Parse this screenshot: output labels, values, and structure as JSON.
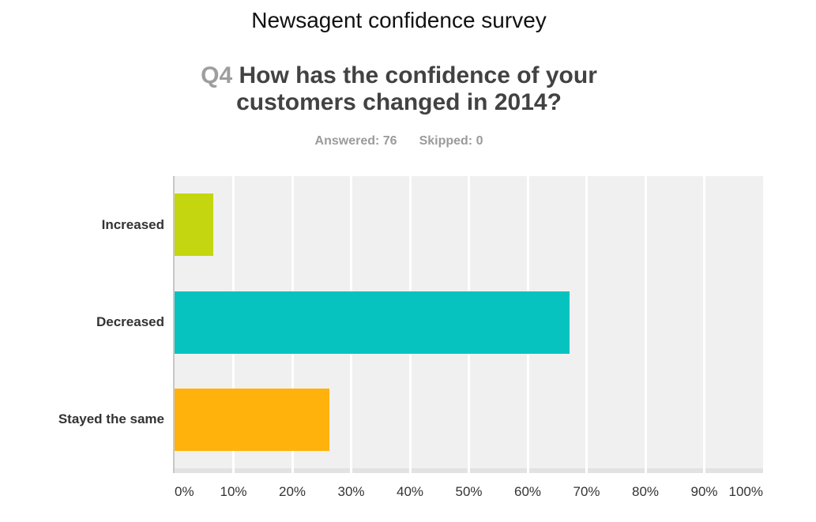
{
  "header": {
    "survey_title": "Newsagent confidence survey",
    "question_number": "Q4",
    "question_text": "How has the confidence of your customers changed in 2014?",
    "answered": "Answered: 76",
    "skipped": "Skipped: 0"
  },
  "chart_data": {
    "type": "bar",
    "orientation": "horizontal",
    "title": "Q4 How has the confidence of your customers changed in 2014?",
    "categories": [
      "Increased",
      "Decreased",
      "Stayed the same"
    ],
    "values": [
      6.58,
      67.11,
      26.32
    ],
    "unit": "%",
    "colors": [
      "#c3d60f",
      "#06c3bf",
      "#ffb20c"
    ],
    "x_axis": {
      "min": 0,
      "max": 100,
      "step": 10,
      "tick_labels": [
        "0%",
        "10%",
        "20%",
        "30%",
        "40%",
        "50%",
        "60%",
        "70%",
        "80%",
        "90%",
        "100%"
      ]
    },
    "xlabel": "",
    "ylabel": "",
    "legend": "none",
    "grid": "vertical-white-on-gray",
    "plot_background": "#f0f0f0",
    "axis_strip_color": "#e2e2e2",
    "axis_line_color": "#c7c7c7"
  }
}
